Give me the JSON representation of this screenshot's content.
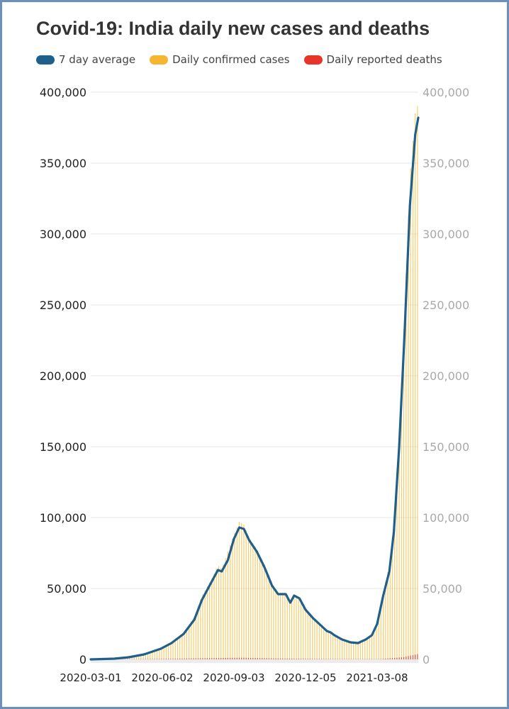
{
  "colors": {
    "average": "#1f5f8b",
    "cases": "#f5b731",
    "deaths": "#e8352a",
    "grid": "#e6e6e6",
    "right_axis_text": "#a9a9a9"
  },
  "chart_data": {
    "type": "bar",
    "title": "Covid-19: India daily new cases and deaths",
    "legend": [
      "7 day average",
      "Daily confirmed cases",
      "Daily reported deaths"
    ],
    "legend_placement": "top-left",
    "grid": true,
    "ylim": [
      0,
      400000
    ],
    "yticks": [
      0,
      50000,
      100000,
      150000,
      200000,
      250000,
      300000,
      350000,
      400000
    ],
    "ytick_labels": [
      "0",
      "50,000",
      "100,000",
      "150,000",
      "200,000",
      "250,000",
      "300,000",
      "350,000",
      "400,000"
    ],
    "xlim": [
      "2020-03-01",
      "2021-05-05"
    ],
    "xtick_labels": [
      "2020-03-01",
      "2020-06-02",
      "2020-09-03",
      "2020-12-05",
      "2021-03-08"
    ],
    "series": [
      {
        "name": "7 day average",
        "type": "line",
        "points": [
          [
            "2020-03-01",
            0
          ],
          [
            "2020-04-01",
            500
          ],
          [
            "2020-04-20",
            1500
          ],
          [
            "2020-05-10",
            3500
          ],
          [
            "2020-06-01",
            7500
          ],
          [
            "2020-06-15",
            11500
          ],
          [
            "2020-07-01",
            18000
          ],
          [
            "2020-07-15",
            28000
          ],
          [
            "2020-07-25",
            42000
          ],
          [
            "2020-08-05",
            53000
          ],
          [
            "2020-08-15",
            63000
          ],
          [
            "2020-08-20",
            62000
          ],
          [
            "2020-08-28",
            70000
          ],
          [
            "2020-09-05",
            85000
          ],
          [
            "2020-09-12",
            93000
          ],
          [
            "2020-09-18",
            92000
          ],
          [
            "2020-09-25",
            84000
          ],
          [
            "2020-10-05",
            76000
          ],
          [
            "2020-10-15",
            65000
          ],
          [
            "2020-10-25",
            52000
          ],
          [
            "2020-11-02",
            46000
          ],
          [
            "2020-11-12",
            46000
          ],
          [
            "2020-11-18",
            40000
          ],
          [
            "2020-11-23",
            45000
          ],
          [
            "2020-11-30",
            43000
          ],
          [
            "2020-12-08",
            35000
          ],
          [
            "2020-12-18",
            29000
          ],
          [
            "2020-12-28",
            24000
          ],
          [
            "2021-01-05",
            20000
          ],
          [
            "2021-01-10",
            19000
          ],
          [
            "2021-01-15",
            17000
          ],
          [
            "2021-01-25",
            14000
          ],
          [
            "2021-02-05",
            12000
          ],
          [
            "2021-02-15",
            11500
          ],
          [
            "2021-02-25",
            14000
          ],
          [
            "2021-03-05",
            17000
          ],
          [
            "2021-03-12",
            25000
          ],
          [
            "2021-03-20",
            45000
          ],
          [
            "2021-03-28",
            62000
          ],
          [
            "2021-04-03",
            90000
          ],
          [
            "2021-04-10",
            150000
          ],
          [
            "2021-04-17",
            230000
          ],
          [
            "2021-04-24",
            320000
          ],
          [
            "2021-05-01",
            370000
          ],
          [
            "2021-05-05",
            382000
          ]
        ]
      },
      {
        "name": "Daily confirmed cases",
        "type": "bar",
        "envelope": [
          [
            "2020-03-01",
            0
          ],
          [
            "2020-04-01",
            600
          ],
          [
            "2020-04-20",
            1600
          ],
          [
            "2020-05-10",
            3800
          ],
          [
            "2020-06-01",
            8000
          ],
          [
            "2020-06-15",
            12000
          ],
          [
            "2020-07-01",
            19000
          ],
          [
            "2020-07-15",
            30000
          ],
          [
            "2020-07-25",
            45000
          ],
          [
            "2020-08-05",
            55000
          ],
          [
            "2020-08-15",
            66000
          ],
          [
            "2020-08-20",
            64000
          ],
          [
            "2020-08-28",
            76000
          ],
          [
            "2020-09-05",
            88000
          ],
          [
            "2020-09-12",
            97000
          ],
          [
            "2020-09-18",
            95000
          ],
          [
            "2020-09-25",
            86000
          ],
          [
            "2020-10-05",
            78000
          ],
          [
            "2020-10-15",
            67000
          ],
          [
            "2020-10-25",
            54000
          ],
          [
            "2020-11-02",
            47000
          ],
          [
            "2020-11-12",
            47000
          ],
          [
            "2020-11-18",
            41000
          ],
          [
            "2020-11-23",
            46000
          ],
          [
            "2020-11-30",
            44000
          ],
          [
            "2020-12-08",
            36000
          ],
          [
            "2020-12-18",
            30000
          ],
          [
            "2020-12-28",
            25000
          ],
          [
            "2021-01-05",
            21000
          ],
          [
            "2021-01-10",
            20000
          ],
          [
            "2021-01-15",
            18000
          ],
          [
            "2021-01-25",
            15000
          ],
          [
            "2021-02-05",
            13000
          ],
          [
            "2021-02-15",
            12500
          ],
          [
            "2021-02-25",
            15000
          ],
          [
            "2021-03-05",
            18000
          ],
          [
            "2021-03-12",
            27000
          ],
          [
            "2021-03-20",
            48000
          ],
          [
            "2021-03-28",
            66000
          ],
          [
            "2021-04-03",
            96000
          ],
          [
            "2021-04-10",
            160000
          ],
          [
            "2021-04-17",
            245000
          ],
          [
            "2021-04-24",
            340000
          ],
          [
            "2021-05-01",
            385000
          ],
          [
            "2021-05-05",
            392000
          ]
        ]
      },
      {
        "name": "Daily reported deaths",
        "type": "bar",
        "envelope": [
          [
            "2020-03-01",
            0
          ],
          [
            "2020-06-01",
            300
          ],
          [
            "2020-07-15",
            700
          ],
          [
            "2020-09-15",
            1200
          ],
          [
            "2020-11-01",
            600
          ],
          [
            "2021-01-15",
            200
          ],
          [
            "2021-03-15",
            200
          ],
          [
            "2021-04-15",
            1500
          ],
          [
            "2021-05-05",
            3800
          ]
        ]
      }
    ]
  }
}
